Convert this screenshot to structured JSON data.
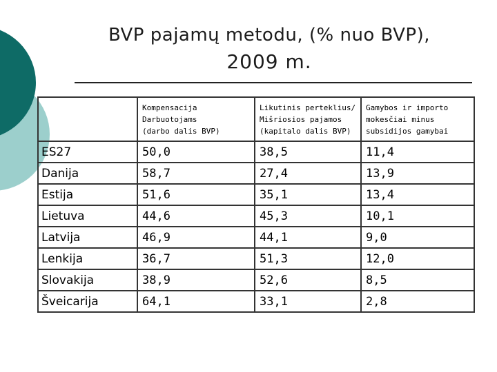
{
  "title": {
    "line1": "BVP pajamų metodu, (% nuo BVP),",
    "line2": "2009 m."
  },
  "table": {
    "headers": [
      [],
      [
        "Kompensacija",
        "Darbuotojams",
        "(darbo dalis BVP)"
      ],
      [
        "Likutinis perteklius/",
        "Mišriosios pajamos",
        "(kapitalo dalis BVP)"
      ],
      [
        "Gamybos ir importo",
        "mokesčiai minus",
        "subsidijos gamybai"
      ]
    ],
    "rows": [
      [
        "ES27",
        "50,0",
        "38,5",
        "11,4"
      ],
      [
        "Danija",
        "58,7",
        "27,4",
        "13,9"
      ],
      [
        "Estija",
        "51,6",
        "35,1",
        "13,4"
      ],
      [
        "Lietuva",
        "44,6",
        "45,3",
        "10,1"
      ],
      [
        "Latvija",
        "46,9",
        "44,1",
        "9,0"
      ],
      [
        "Lenkija",
        "36,7",
        "51,3",
        "12,0"
      ],
      [
        "Slovakija",
        "38,9",
        "52,6",
        "8,5"
      ],
      [
        "Šveicarija",
        "64,1",
        "33,1",
        "2,8"
      ]
    ]
  },
  "colors": {
    "deco_dark": "#0e6b66",
    "deco_light": "#9ccfcc"
  }
}
